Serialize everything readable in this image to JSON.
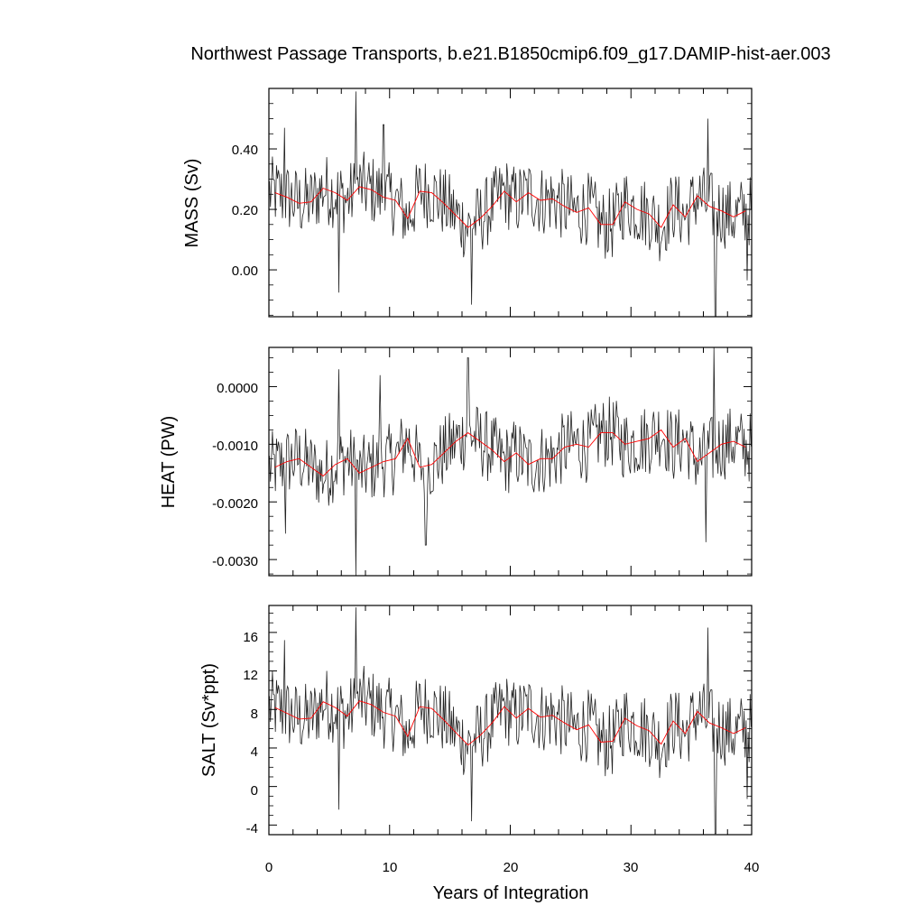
{
  "chart_data": {
    "title": "Northwest Passage Transports, b.e21.B1850cmip6.f09_g17.DAMIP-hist-aer.003",
    "xlabel": "Years of Integration",
    "xlim": [
      0,
      40
    ],
    "x_ticks": [
      "0",
      "10",
      "20",
      "30",
      "40"
    ],
    "panels": [
      {
        "type": "line",
        "ylabel": "MASS (Sv)",
        "ylim": [
          -0.155,
          0.6
        ],
        "y_ticks": [
          0.4,
          0.2,
          0.0
        ],
        "y_tick_labels": [
          "0.40",
          "0.20",
          "0.00"
        ],
        "annual_mean_x": [
          0.5,
          1.5,
          2.5,
          3.5,
          4.5,
          5.5,
          6.5,
          7.5,
          8.5,
          9.5,
          10.5,
          11.5,
          12.5,
          13.5,
          14.5,
          15.5,
          16.5,
          17.5,
          18.5,
          19.5,
          20.5,
          21.5,
          22.5,
          23.5,
          24.5,
          25.5,
          26.5,
          27.5,
          28.5,
          29.5,
          30.5,
          31.5,
          32.5,
          33.5,
          34.5,
          35.5,
          36.5,
          37.5,
          38.5,
          39.5
        ],
        "annual_mean": [
          0.255,
          0.24,
          0.22,
          0.225,
          0.27,
          0.255,
          0.23,
          0.275,
          0.265,
          0.24,
          0.23,
          0.17,
          0.26,
          0.255,
          0.22,
          0.18,
          0.14,
          0.17,
          0.21,
          0.26,
          0.225,
          0.255,
          0.23,
          0.235,
          0.21,
          0.19,
          0.205,
          0.15,
          0.15,
          0.225,
          0.2,
          0.185,
          0.14,
          0.215,
          0.175,
          0.245,
          0.21,
          0.195,
          0.175,
          0.195
        ],
        "monthly_spikes_max": [
          [
            7.2,
            0.59
          ],
          [
            36.4,
            0.5
          ],
          [
            9.5,
            0.48
          ],
          [
            1.3,
            0.47
          ]
        ],
        "monthly_spikes_min": [
          [
            16.8,
            -0.115
          ],
          [
            37.0,
            -0.16
          ],
          [
            5.8,
            -0.075
          ],
          [
            39.6,
            -0.035
          ]
        ]
      },
      {
        "type": "line",
        "ylabel": "HEAT (PW)",
        "ylim": [
          -0.00328,
          0.00068
        ],
        "y_ticks": [
          0.0,
          -0.001,
          -0.002,
          -0.003
        ],
        "y_tick_labels": [
          "0.0000",
          "-0.0010",
          "-0.0020",
          "-0.0030"
        ],
        "annual_mean_x": [
          0.5,
          1.5,
          2.5,
          3.5,
          4.5,
          5.5,
          6.5,
          7.5,
          8.5,
          9.5,
          10.5,
          11.5,
          12.5,
          13.5,
          14.5,
          15.5,
          16.5,
          17.5,
          18.5,
          19.5,
          20.5,
          21.5,
          22.5,
          23.5,
          24.5,
          25.5,
          26.5,
          27.5,
          28.5,
          29.5,
          30.5,
          31.5,
          32.5,
          33.5,
          34.5,
          35.5,
          36.5,
          37.5,
          38.5,
          39.5
        ],
        "annual_mean": [
          -0.0014,
          -0.0013,
          -0.00125,
          -0.0014,
          -0.00155,
          -0.00135,
          -0.00125,
          -0.0015,
          -0.0014,
          -0.0013,
          -0.00125,
          -0.0009,
          -0.0014,
          -0.00135,
          -0.00115,
          -0.00095,
          -0.0008,
          -0.00095,
          -0.0011,
          -0.0013,
          -0.00115,
          -0.00135,
          -0.00125,
          -0.00125,
          -0.00105,
          -0.001,
          -0.00105,
          -0.0008,
          -0.0008,
          -0.001,
          -0.00095,
          -0.0009,
          -0.00075,
          -0.00105,
          -0.0009,
          -0.0013,
          -0.00115,
          -0.001,
          -0.00095,
          -0.00105
        ],
        "monthly_spikes_max": [
          [
            16.5,
            0.0005
          ],
          [
            36.9,
            0.00068
          ],
          [
            5.8,
            0.0003
          ],
          [
            9.2,
            0.0002
          ]
        ],
        "monthly_spikes_min": [
          [
            7.2,
            -0.00328
          ],
          [
            36.2,
            -0.0027
          ],
          [
            13.0,
            -0.00275
          ],
          [
            1.4,
            -0.00255
          ]
        ]
      },
      {
        "type": "line",
        "ylabel": "SALT (Sv*ppt)",
        "ylim": [
          -5,
          18.8
        ],
        "y_ticks": [
          16,
          12,
          8,
          4,
          0,
          -4
        ],
        "y_tick_labels": [
          "16",
          "12",
          "8",
          "4",
          "0",
          "-4"
        ],
        "annual_mean_x": [
          0.5,
          1.5,
          2.5,
          3.5,
          4.5,
          5.5,
          6.5,
          7.5,
          8.5,
          9.5,
          10.5,
          11.5,
          12.5,
          13.5,
          14.5,
          15.5,
          16.5,
          17.5,
          18.5,
          19.5,
          20.5,
          21.5,
          22.5,
          23.5,
          24.5,
          25.5,
          26.5,
          27.5,
          28.5,
          29.5,
          30.5,
          31.5,
          32.5,
          33.5,
          34.5,
          35.5,
          36.5,
          37.5,
          38.5,
          39.5
        ],
        "annual_mean": [
          8.2,
          7.6,
          7.0,
          7.1,
          8.8,
          8.2,
          7.3,
          8.9,
          8.5,
          7.7,
          7.3,
          5.2,
          8.3,
          8.1,
          6.9,
          5.6,
          4.3,
          5.3,
          6.6,
          8.3,
          7.1,
          8.1,
          7.2,
          7.4,
          6.6,
          5.9,
          6.4,
          4.6,
          4.7,
          7.1,
          6.3,
          5.8,
          4.4,
          6.8,
          5.5,
          7.8,
          6.6,
          6.1,
          5.5,
          6.1
        ],
        "monthly_spikes_max": [
          [
            7.2,
            18.6
          ],
          [
            36.4,
            16.5
          ],
          [
            1.3,
            15.2
          ],
          [
            5.8,
            15.0
          ]
        ],
        "monthly_spikes_min": [
          [
            16.8,
            -3.6
          ],
          [
            37.0,
            -4.9
          ],
          [
            5.8,
            -2.4
          ],
          [
            39.6,
            -1.3
          ]
        ]
      }
    ],
    "series": [
      {
        "name": "",
        "color": "#000000"
      },
      {
        "name": "",
        "color": "#ff0000"
      }
    ],
    "grid": false
  }
}
